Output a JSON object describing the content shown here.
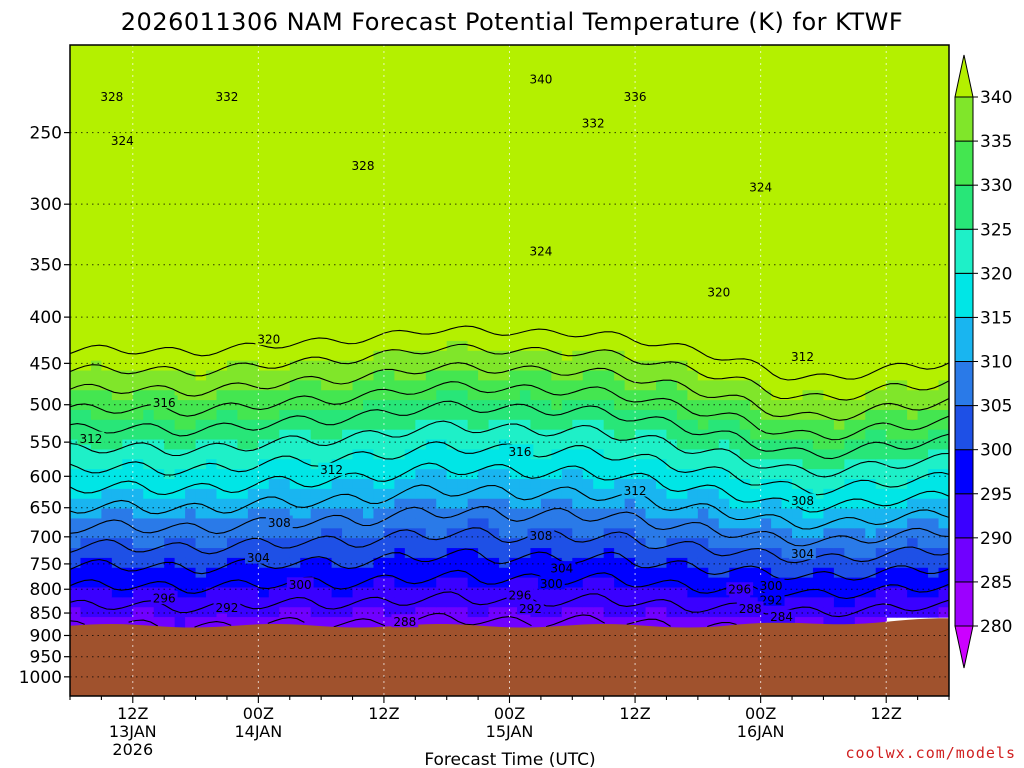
{
  "chart_data": {
    "type": "time-height contour",
    "title": "2026011306 NAM Forecast Potential Temperature (K) for KTWF",
    "xlabel": "Forecast Time (UTC)",
    "ylabel": "",
    "y_scale": "log",
    "ylim": [
      1050,
      200
    ],
    "y_ticks": [
      "250",
      "300",
      "350",
      "400",
      "450",
      "500",
      "550",
      "600",
      "650",
      "700",
      "750",
      "800",
      "850",
      "900",
      "950",
      "1000"
    ],
    "x_range_hours": [
      0,
      84
    ],
    "x_ticks": [
      {
        "hour": 6,
        "lines": [
          "12Z",
          "13JAN",
          "2026"
        ]
      },
      {
        "hour": 18,
        "lines": [
          "00Z",
          "14JAN"
        ]
      },
      {
        "hour": 30,
        "lines": [
          "12Z"
        ]
      },
      {
        "hour": 42,
        "lines": [
          "00Z",
          "15JAN"
        ]
      },
      {
        "hour": 54,
        "lines": [
          "12Z"
        ]
      },
      {
        "hour": 66,
        "lines": [
          "00Z",
          "16JAN"
        ]
      },
      {
        "hour": 78,
        "lines": [
          "12Z"
        ]
      }
    ],
    "grid": true,
    "terrain_color": "#a0522d",
    "colorbar": {
      "levels": [
        "280",
        "285",
        "290",
        "295",
        "300",
        "305",
        "310",
        "315",
        "320",
        "325",
        "330",
        "335",
        "340"
      ],
      "colors": [
        "#cc00ff",
        "#9c00ff",
        "#7000ff",
        "#3a00ff",
        "#0000ff",
        "#1e50e6",
        "#2a7ae8",
        "#19b5f0",
        "#00e6e6",
        "#1ef0c8",
        "#28e678",
        "#44e650",
        "#80e62a",
        "#b4f000"
      ],
      "placement": "right"
    },
    "contour_labels": [
      {
        "hour": 4,
        "pres": 228,
        "text": "328"
      },
      {
        "hour": 15,
        "pres": 228,
        "text": "332"
      },
      {
        "hour": 45,
        "pres": 218,
        "text": "340"
      },
      {
        "hour": 54,
        "pres": 228,
        "text": "336"
      },
      {
        "hour": 50,
        "pres": 244,
        "text": "332"
      },
      {
        "hour": 28,
        "pres": 272,
        "text": "328"
      },
      {
        "hour": 5,
        "pres": 255,
        "text": "324"
      },
      {
        "hour": 66,
        "pres": 287,
        "text": "324"
      },
      {
        "hour": 45,
        "pres": 338,
        "text": "324"
      },
      {
        "hour": 62,
        "pres": 375,
        "text": "320"
      },
      {
        "hour": 19,
        "pres": 423,
        "text": "320"
      },
      {
        "hour": 70,
        "pres": 442,
        "text": "312"
      },
      {
        "hour": 9,
        "pres": 497,
        "text": "316"
      },
      {
        "hour": 43,
        "pres": 563,
        "text": "316"
      },
      {
        "hour": 2,
        "pres": 545,
        "text": "312"
      },
      {
        "hour": 25,
        "pres": 590,
        "text": "312"
      },
      {
        "hour": 54,
        "pres": 622,
        "text": "312"
      },
      {
        "hour": 70,
        "pres": 638,
        "text": "308"
      },
      {
        "hour": 20,
        "pres": 675,
        "text": "308"
      },
      {
        "hour": 45,
        "pres": 698,
        "text": "308"
      },
      {
        "hour": 18,
        "pres": 738,
        "text": "304"
      },
      {
        "hour": 47,
        "pres": 758,
        "text": "304"
      },
      {
        "hour": 70,
        "pres": 730,
        "text": "304"
      },
      {
        "hour": 22,
        "pres": 790,
        "text": "300"
      },
      {
        "hour": 46,
        "pres": 788,
        "text": "300"
      },
      {
        "hour": 67,
        "pres": 792,
        "text": "300"
      },
      {
        "hour": 64,
        "pres": 800,
        "text": "296"
      },
      {
        "hour": 9,
        "pres": 818,
        "text": "296"
      },
      {
        "hour": 43,
        "pres": 812,
        "text": "296"
      },
      {
        "hour": 67,
        "pres": 822,
        "text": "292"
      },
      {
        "hour": 15,
        "pres": 838,
        "text": "292"
      },
      {
        "hour": 44,
        "pres": 840,
        "text": "292"
      },
      {
        "hour": 65,
        "pres": 840,
        "text": "288"
      },
      {
        "hour": 32,
        "pres": 868,
        "text": "288"
      },
      {
        "hour": 68,
        "pres": 858,
        "text": "284"
      }
    ]
  },
  "credit": "coolwx.com/models"
}
